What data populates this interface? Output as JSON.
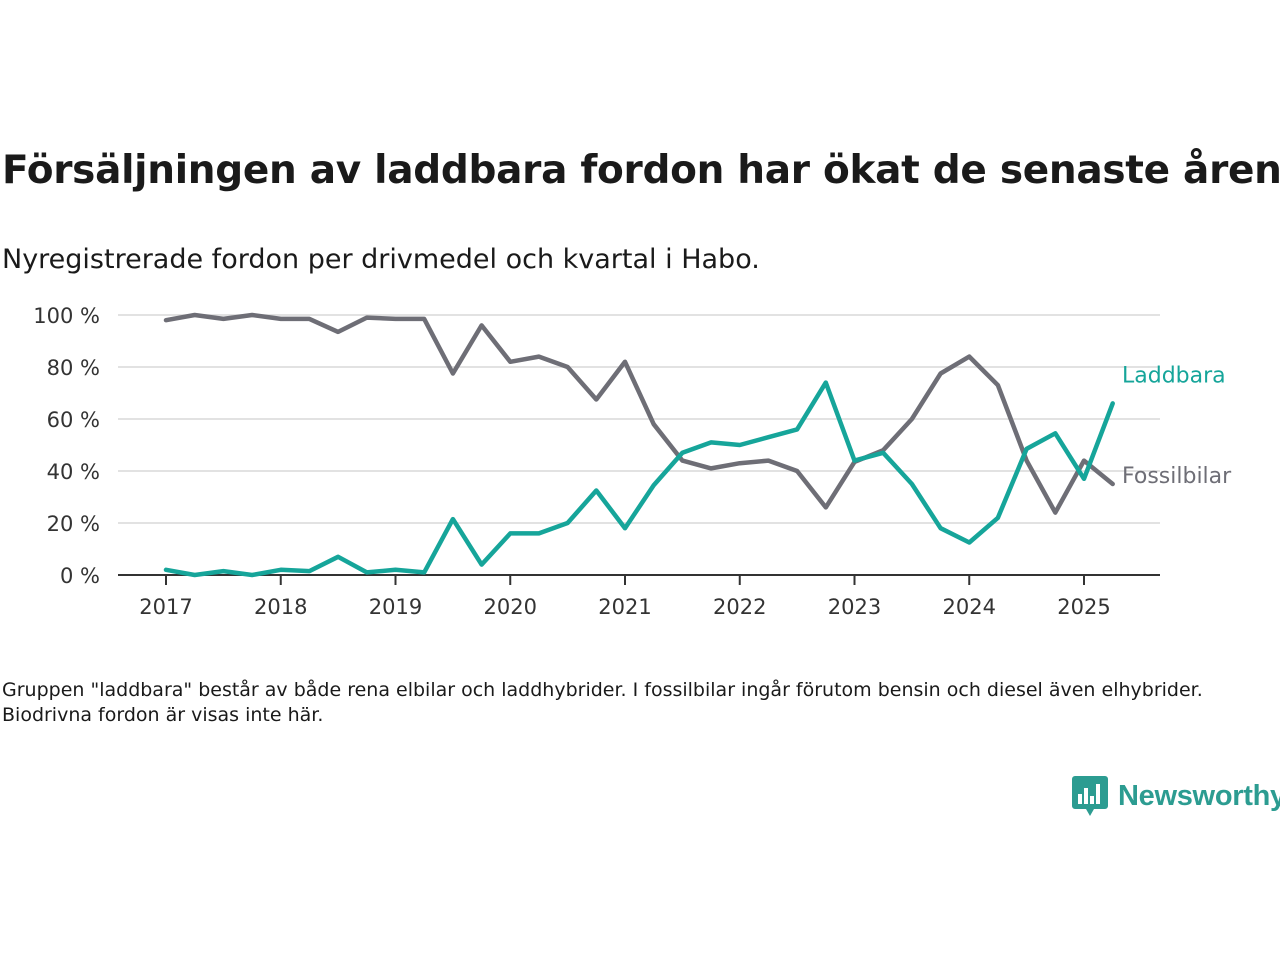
{
  "header": {
    "title": "Försäljningen av laddbara fordon har ökat de senaste åren",
    "subtitle": "Nyregistrerade fordon per drivmedel och kvartal i Habo."
  },
  "footer": {
    "note": "Gruppen \"laddbara\" består av både rena elbilar och laddhybrider. I fossilbilar ingår förutom bensin och diesel även elhybrider. Biodrivna fordon är visas inte här.",
    "brand": "Newsworthy"
  },
  "colors": {
    "laddbara": "#16a59a",
    "fossilbilar": "#6e6e76",
    "grid": "#d9d9d9",
    "axis": "#333333",
    "brand": "#2c9c91"
  },
  "chart_data": {
    "type": "line",
    "x": [
      2017.0,
      2017.25,
      2017.5,
      2017.75,
      2018.0,
      2018.25,
      2018.5,
      2018.75,
      2019.0,
      2019.25,
      2019.5,
      2019.75,
      2020.0,
      2020.25,
      2020.5,
      2020.75,
      2021.0,
      2021.25,
      2021.5,
      2021.75,
      2022.0,
      2022.25,
      2022.5,
      2022.75,
      2023.0,
      2023.25,
      2023.5,
      2023.75,
      2024.0,
      2024.25,
      2024.5,
      2024.75,
      2025.0,
      2025.25
    ],
    "series": [
      {
        "name": "Laddbara",
        "color_key": "laddbara",
        "values": [
          2,
          0,
          1.5,
          0,
          2,
          1.5,
          7,
          1,
          2,
          1,
          21.5,
          4,
          16,
          16,
          20,
          32.5,
          18,
          34.5,
          47,
          51,
          50,
          53,
          56,
          74,
          44,
          47,
          35,
          18,
          12.5,
          22,
          48.5,
          54.5,
          37,
          66
        ]
      },
      {
        "name": "Fossilbilar",
        "color_key": "fossilbilar",
        "values": [
          98,
          100,
          98.5,
          100,
          98.5,
          98.5,
          93.5,
          99,
          98.5,
          98.5,
          77.5,
          96,
          82,
          84,
          80,
          67.5,
          82,
          58,
          44,
          41,
          43,
          44,
          40,
          26,
          43.5,
          48,
          60,
          77.5,
          84,
          73,
          44,
          24,
          44,
          35
        ]
      }
    ],
    "x_ticks": [
      2017,
      2018,
      2019,
      2020,
      2021,
      2022,
      2023,
      2024,
      2025
    ],
    "x_tick_labels": [
      "2017",
      "2018",
      "2019",
      "2020",
      "2021",
      "2022",
      "2023",
      "2024",
      "2025"
    ],
    "y_ticks": [
      0,
      20,
      40,
      60,
      80,
      100
    ],
    "y_tick_labels": [
      "0 %",
      "20 %",
      "40 %",
      "60 %",
      "80 %",
      "100 %"
    ],
    "xlim": [
      2016.6,
      2025.65
    ],
    "ylim": [
      0,
      100
    ],
    "grid": "horizontal",
    "legend": "inline-right"
  }
}
